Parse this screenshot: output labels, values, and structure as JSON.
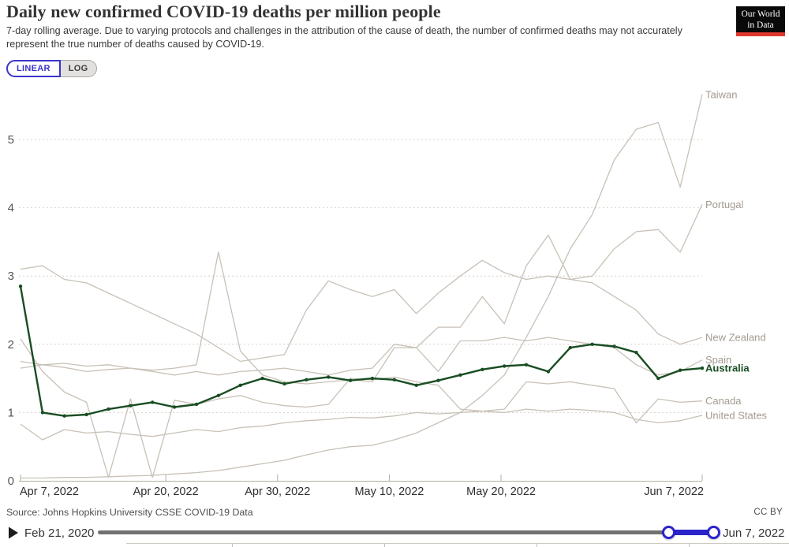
{
  "header": {
    "title": "Daily new confirmed COVID-19 deaths per million people",
    "subtitle": "7-day rolling average. Due to varying protocols and challenges in the attribution of the cause of death, the number of confirmed deaths may not accurately represent the true number of deaths caused by COVID-19.",
    "logo_line1": "Our World",
    "logo_line2": "in Data"
  },
  "controls": {
    "linear_label": "LINEAR",
    "log_label": "LOG",
    "selected": "LINEAR"
  },
  "colors": {
    "accent_blue": "#3b35cb",
    "timeline_blue": "#2b24cb",
    "highlight_green": "#194d23",
    "muted_line": "#c8c1b7",
    "muted_label": "#a39a90",
    "logo_red": "#e0372e"
  },
  "chart_data": {
    "type": "line",
    "title": "Daily new confirmed COVID-19 deaths per million people",
    "ylabel": "",
    "xlabel": "",
    "yticks": [
      0,
      1,
      2,
      3,
      4,
      5
    ],
    "ylim": [
      0,
      5.8
    ],
    "grid": "horizontal-dashed",
    "legend_position": "right-entity-labels",
    "x_total_days": 61,
    "x_tick_days": [
      0,
      13,
      23,
      33,
      43,
      61
    ],
    "x_tick_labels": [
      "Apr 7, 2022",
      "Apr 20, 2022",
      "Apr 30, 2022",
      "May 10, 2022",
      "May 20, 2022",
      "Jun 7, 2022"
    ],
    "x": [
      "Apr 7",
      "Apr 9",
      "Apr 11",
      "Apr 13",
      "Apr 15",
      "Apr 17",
      "Apr 19",
      "Apr 21",
      "Apr 23",
      "Apr 25",
      "Apr 27",
      "Apr 29",
      "May 1",
      "May 3",
      "May 5",
      "May 7",
      "May 8",
      "May 10",
      "May 12",
      "May 14",
      "May 16",
      "May 18",
      "May 20",
      "May 22",
      "May 24",
      "May 26",
      "May 28",
      "May 30",
      "Jun 1",
      "Jun 3",
      "Jun 5",
      "Jun 7"
    ],
    "series": [
      {
        "name": "Taiwan",
        "highlight": false,
        "color": "#c8c1b7",
        "label_color": "#a39a90",
        "values": [
          0.04,
          0.04,
          0.05,
          0.05,
          0.06,
          0.07,
          0.08,
          0.1,
          0.12,
          0.15,
          0.2,
          0.25,
          0.3,
          0.38,
          0.45,
          0.5,
          0.52,
          0.6,
          0.7,
          0.85,
          1.0,
          1.25,
          1.55,
          2.1,
          2.7,
          3.4,
          3.9,
          4.7,
          5.15,
          5.25,
          4.3,
          5.66
        ]
      },
      {
        "name": "Portugal",
        "highlight": false,
        "color": "#c8c1b7",
        "label_color": "#a39a90",
        "values": [
          1.75,
          1.7,
          1.72,
          1.68,
          1.7,
          1.65,
          1.62,
          1.65,
          1.7,
          3.35,
          1.9,
          1.55,
          1.45,
          1.42,
          1.45,
          1.48,
          1.45,
          1.95,
          1.95,
          2.25,
          2.25,
          2.7,
          2.3,
          3.15,
          3.6,
          2.95,
          3.0,
          3.4,
          3.65,
          3.68,
          3.35,
          4.05
        ]
      },
      {
        "name": "New Zealand",
        "highlight": false,
        "color": "#c8c1b7",
        "label_color": "#a39a90",
        "values": [
          3.1,
          3.15,
          2.95,
          2.9,
          2.75,
          2.6,
          2.45,
          2.3,
          2.15,
          1.95,
          1.75,
          1.8,
          1.85,
          2.5,
          2.93,
          2.8,
          2.7,
          2.8,
          2.45,
          2.75,
          3.0,
          3.23,
          3.05,
          2.95,
          3.0,
          2.95,
          2.9,
          2.7,
          2.5,
          2.15,
          2.0,
          2.1
        ]
      },
      {
        "name": "Spain",
        "highlight": false,
        "color": "#c8c1b7",
        "label_color": "#a39a90",
        "values": [
          1.65,
          1.7,
          1.66,
          1.6,
          1.63,
          1.65,
          1.6,
          1.55,
          1.6,
          1.55,
          1.6,
          1.62,
          1.65,
          1.6,
          1.55,
          1.62,
          1.65,
          2.0,
          1.95,
          1.6,
          2.05,
          2.05,
          2.1,
          2.05,
          2.1,
          2.05,
          2.0,
          1.95,
          1.7,
          1.55,
          1.6,
          1.77
        ]
      },
      {
        "name": "Canada",
        "highlight": false,
        "color": "#c8c1b7",
        "label_color": "#a39a90",
        "values": [
          2.08,
          1.6,
          1.3,
          1.15,
          0.05,
          1.2,
          0.05,
          1.18,
          1.12,
          1.2,
          1.25,
          1.15,
          1.1,
          1.08,
          1.12,
          1.5,
          1.48,
          1.52,
          1.45,
          1.4,
          1.05,
          1.02,
          1.05,
          1.45,
          1.42,
          1.45,
          1.4,
          1.35,
          0.85,
          1.2,
          1.15,
          1.17
        ]
      },
      {
        "name": "United States",
        "highlight": false,
        "color": "#c8c1b7",
        "label_color": "#a39a90",
        "values": [
          0.83,
          0.6,
          0.75,
          0.7,
          0.72,
          0.68,
          0.65,
          0.7,
          0.75,
          0.72,
          0.78,
          0.8,
          0.85,
          0.88,
          0.9,
          0.93,
          0.92,
          0.95,
          1.0,
          0.98,
          1.0,
          1.02,
          1.0,
          1.05,
          1.02,
          1.05,
          1.03,
          1.0,
          0.9,
          0.85,
          0.88,
          0.96
        ]
      },
      {
        "name": "Australia",
        "highlight": true,
        "color": "#194d23",
        "label_color": "#194d23",
        "values": [
          2.85,
          1.0,
          0.95,
          0.97,
          1.05,
          1.1,
          1.15,
          1.08,
          1.12,
          1.25,
          1.4,
          1.5,
          1.42,
          1.48,
          1.52,
          1.47,
          1.5,
          1.48,
          1.4,
          1.47,
          1.55,
          1.63,
          1.68,
          1.7,
          1.6,
          1.95,
          2.0,
          1.97,
          1.88,
          1.5,
          1.62,
          1.65
        ]
      }
    ]
  },
  "footer": {
    "source": "Source: Johns Hopkins University CSSE COVID-19 Data",
    "license": "CC BY"
  },
  "timeline": {
    "start_label": "Feb 21, 2020",
    "end_label": "Jun 7, 2022"
  }
}
